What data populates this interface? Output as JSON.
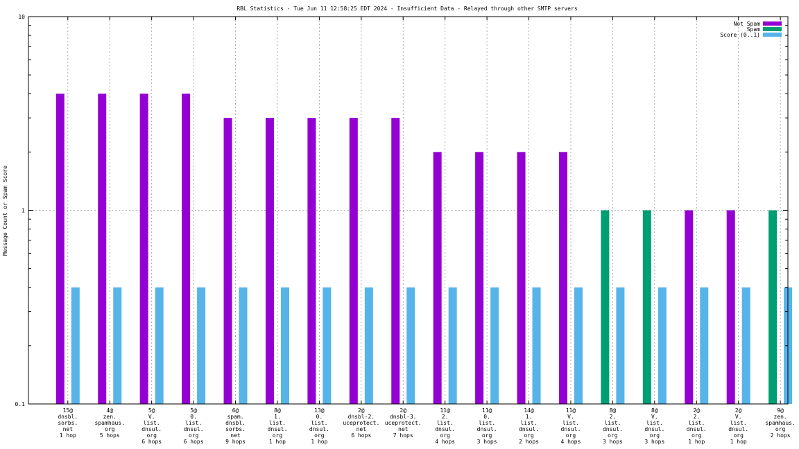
{
  "chart_data": {
    "type": "bar",
    "title": "RBL Statistics - Tue Jun 11 12:58:25 EDT 2024 - Insufficient Data - Relayed through other SMTP servers",
    "xlabel": "",
    "ylabel": "Message Count or Spam Score",
    "yscale": "log",
    "ylim": [
      0.1,
      10
    ],
    "yticks": [
      0.1,
      1,
      10
    ],
    "ytick_labels": [
      "0.1",
      "1",
      "10"
    ],
    "grid": true,
    "legend_position": "top-right",
    "categories": [
      [
        "15@",
        "dnsbl.",
        "sorbs.",
        "net",
        "1 hop"
      ],
      [
        "4@",
        "zen.",
        "spamhaus.",
        "org",
        "5 hops"
      ],
      [
        "5@",
        "V.",
        "list.",
        "dnsul.",
        "org",
        "6 hops"
      ],
      [
        "5@",
        "0.",
        "list.",
        "dnsul.",
        "org",
        "6 hops"
      ],
      [
        "6@",
        "spam.",
        "dnsbl.",
        "sorbs.",
        "net",
        "9 hops"
      ],
      [
        "8@",
        "1.",
        "list.",
        "dnsul.",
        "org",
        "1 hop"
      ],
      [
        "13@",
        "0.",
        "list.",
        "dnsul.",
        "org",
        "1 hop"
      ],
      [
        "2@",
        "dnsbl-2.",
        "uceprotect.",
        "net",
        "6 hops"
      ],
      [
        "2@",
        "dnsbl-3.",
        "uceprotect.",
        "net",
        "7 hops"
      ],
      [
        "11@",
        "2.",
        "list.",
        "dnsul.",
        "org",
        "4 hops"
      ],
      [
        "11@",
        "0.",
        "list.",
        "dnsul.",
        "org",
        "3 hops"
      ],
      [
        "14@",
        "1.",
        "list.",
        "dnsul.",
        "org",
        "2 hops"
      ],
      [
        "11@",
        "V.",
        "list.",
        "dnsul.",
        "org",
        "4 hops"
      ],
      [
        "8@",
        "2.",
        "list.",
        "dnsul.",
        "org",
        "3 hops"
      ],
      [
        "8@",
        "V.",
        "list.",
        "dnsul.",
        "org",
        "3 hops"
      ],
      [
        "2@",
        "2.",
        "list.",
        "dnsul.",
        "org",
        "1 hop"
      ],
      [
        "2@",
        "V.",
        "list.",
        "dnsul.",
        "org",
        "1 hop"
      ],
      [
        "9@",
        "zen.",
        "spamhaus.",
        "org",
        "2 hops"
      ]
    ],
    "series": [
      {
        "name": "Not Spam",
        "color": "#9400d3",
        "values": [
          4,
          4,
          4,
          4,
          3,
          3,
          3,
          3,
          3,
          2,
          2,
          2,
          2,
          null,
          null,
          1,
          1,
          null
        ]
      },
      {
        "name": "Spam",
        "color": "#009e73",
        "values": [
          null,
          null,
          null,
          null,
          null,
          null,
          null,
          null,
          null,
          null,
          null,
          null,
          null,
          1,
          1,
          null,
          null,
          1
        ]
      },
      {
        "name": "Score (0..1)",
        "color": "#56b4e9",
        "values": [
          0.4,
          0.4,
          0.4,
          0.4,
          0.4,
          0.4,
          0.4,
          0.4,
          0.4,
          0.4,
          0.4,
          0.4,
          0.4,
          0.4,
          0.4,
          0.4,
          0.4,
          0.4
        ]
      }
    ]
  }
}
